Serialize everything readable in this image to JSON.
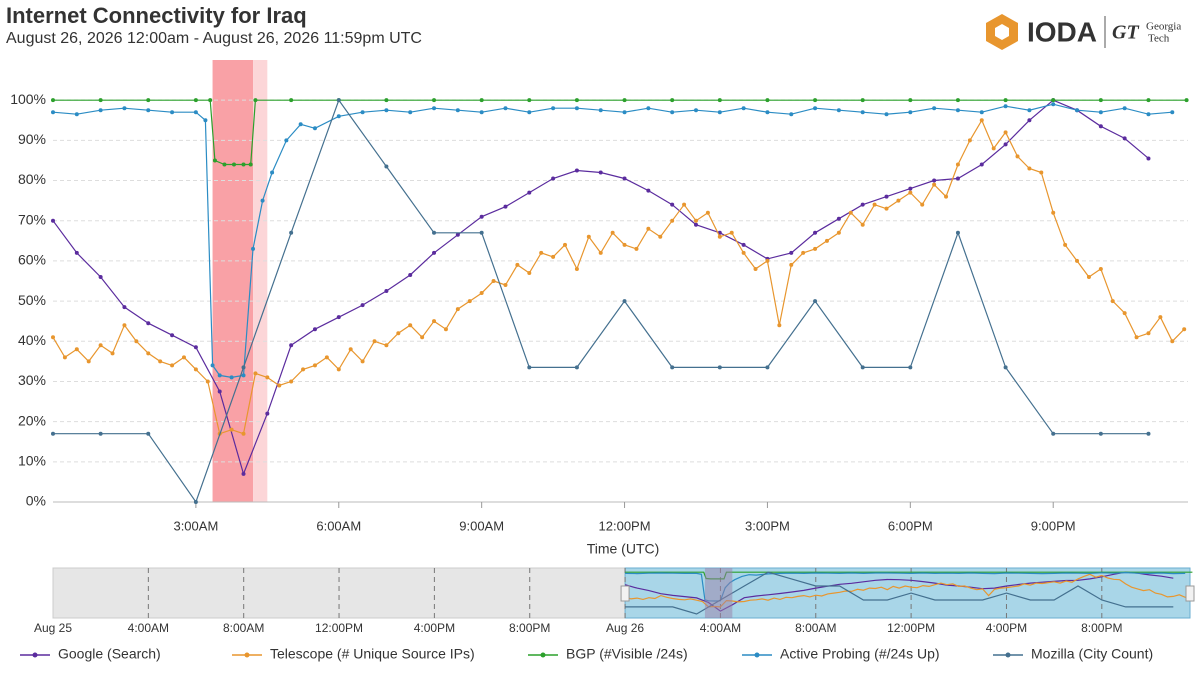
{
  "chart_data": {
    "type": "line",
    "title": "Internet Connectivity for Iraq",
    "subtitle": "August 26, 2026 12:00am - August 26, 2026 11:59pm UTC",
    "logo_text": "IODA",
    "partner_mark": "GT",
    "partner_lines": [
      "Georgia",
      "Tech"
    ],
    "x_label": "Time (UTC)",
    "xlim": [
      0,
      23.83
    ],
    "xticks": [
      {
        "value": 3,
        "label": "3:00AM"
      },
      {
        "value": 6,
        "label": "6:00AM"
      },
      {
        "value": 9,
        "label": "9:00AM"
      },
      {
        "value": 12,
        "label": "12:00PM"
      },
      {
        "value": 15,
        "label": "3:00PM"
      },
      {
        "value": 18,
        "label": "6:00PM"
      },
      {
        "value": 21,
        "label": "9:00PM"
      }
    ],
    "ylim": [
      0,
      110
    ],
    "yticks": [
      {
        "value": 0,
        "label": "0%"
      },
      {
        "value": 10,
        "label": "10%"
      },
      {
        "value": 20,
        "label": "20%"
      },
      {
        "value": 30,
        "label": "30%"
      },
      {
        "value": 40,
        "label": "40%"
      },
      {
        "value": 50,
        "label": "50%"
      },
      {
        "value": 60,
        "label": "60%"
      },
      {
        "value": 70,
        "label": "70%"
      },
      {
        "value": 80,
        "label": "80%"
      },
      {
        "value": 90,
        "label": "90%"
      },
      {
        "value": 100,
        "label": "100%"
      }
    ],
    "grid": true,
    "highlights": [
      {
        "x": [
          3.35,
          4.2
        ],
        "color": "#f9a1a6"
      },
      {
        "x": [
          4.2,
          4.5
        ],
        "color": "#fcd6d8"
      }
    ],
    "series": [
      {
        "name": "Google (Search)",
        "color": "#5b2c9e",
        "x": [
          0,
          0.5,
          1,
          1.5,
          2,
          2.5,
          3,
          3.5,
          4,
          4.5,
          5,
          5.5,
          6,
          6.5,
          7,
          7.5,
          8,
          8.5,
          9,
          9.5,
          10,
          10.5,
          11,
          11.5,
          12,
          12.5,
          13,
          13.5,
          14,
          14.5,
          15,
          15.5,
          16,
          16.5,
          17,
          17.5,
          18,
          18.5,
          19,
          19.5,
          20,
          20.5,
          21,
          21.5,
          22,
          22.5,
          23
        ],
        "values": [
          70,
          62,
          56,
          48.5,
          44.5,
          41.5,
          38.5,
          27.5,
          7,
          22,
          39,
          43,
          46,
          49,
          52.5,
          56.5,
          62,
          66.5,
          71,
          73.5,
          77,
          80.5,
          82.5,
          82,
          80.5,
          77.5,
          74,
          69,
          67,
          64,
          60.5,
          62,
          67,
          70.5,
          74,
          76,
          78,
          80,
          80.5,
          84,
          89,
          95,
          100,
          97.5,
          93.5,
          90.5,
          85.5
        ]
      },
      {
        "name": "Telescope (# Unique Source IPs)",
        "color": "#e8962e",
        "x": [
          0,
          0.25,
          0.5,
          0.75,
          1,
          1.25,
          1.5,
          1.75,
          2,
          2.25,
          2.5,
          2.75,
          3,
          3.25,
          3.5,
          3.75,
          4,
          4.25,
          4.5,
          4.75,
          5,
          5.25,
          5.5,
          5.75,
          6,
          6.25,
          6.5,
          6.75,
          7,
          7.25,
          7.5,
          7.75,
          8,
          8.25,
          8.5,
          8.75,
          9,
          9.25,
          9.5,
          9.75,
          10,
          10.25,
          10.5,
          10.75,
          11,
          11.25,
          11.5,
          11.75,
          12,
          12.25,
          12.5,
          12.75,
          13,
          13.25,
          13.5,
          13.75,
          14,
          14.25,
          14.5,
          14.75,
          15,
          15.25,
          15.5,
          15.75,
          16,
          16.25,
          16.5,
          16.75,
          17,
          17.25,
          17.5,
          17.75,
          18,
          18.25,
          18.5,
          18.75,
          19,
          19.25,
          19.5,
          19.75,
          20,
          20.25,
          20.5,
          20.75,
          21,
          21.25,
          21.5,
          21.75,
          22,
          22.25,
          22.5,
          22.75,
          23,
          23.25,
          23.5,
          23.75
        ],
        "values": [
          41,
          36,
          38,
          35,
          39,
          37,
          44,
          40,
          37,
          35,
          34,
          36,
          33,
          30,
          17,
          18,
          17,
          32,
          31,
          29,
          30,
          33,
          34,
          36,
          33,
          38,
          35,
          40,
          39,
          42,
          44,
          41,
          45,
          43,
          48,
          50,
          52,
          55,
          54,
          59,
          57,
          62,
          61,
          64,
          58,
          66,
          62,
          67,
          64,
          63,
          68,
          66,
          70,
          74,
          70,
          72,
          66,
          67,
          62,
          58,
          60,
          44,
          59,
          62,
          63,
          65,
          67,
          72,
          69,
          74,
          73,
          75,
          77,
          74,
          79,
          76,
          84,
          90,
          95,
          88,
          92,
          86,
          83,
          82,
          72,
          64,
          60,
          56,
          58,
          50,
          47,
          41,
          42,
          46,
          40,
          43
        ]
      },
      {
        "name": "BGP (#Visible /24s)",
        "color": "#2ca02c",
        "x": [
          0,
          1,
          2,
          3,
          3.3,
          3.4,
          3.6,
          3.8,
          4.0,
          4.15,
          4.25,
          5,
          6,
          7,
          8,
          9,
          10,
          11,
          12,
          13,
          14,
          15,
          16,
          17,
          18,
          19,
          20,
          21,
          22,
          23,
          23.8
        ],
        "values": [
          100,
          100,
          100,
          100,
          100,
          85,
          84,
          84,
          84,
          84,
          100,
          100,
          100,
          100,
          100,
          100,
          100,
          100,
          100,
          100,
          100,
          100,
          100,
          100,
          100,
          100,
          100,
          100,
          100,
          100,
          100
        ]
      },
      {
        "name": "Active Probing (#/24s Up)",
        "color": "#2b8cc4",
        "x": [
          0,
          0.5,
          1,
          1.5,
          2,
          2.5,
          3,
          3.2,
          3.35,
          3.5,
          3.75,
          4.0,
          4.2,
          4.4,
          4.6,
          4.9,
          5.2,
          5.5,
          6,
          6.5,
          7,
          7.5,
          8,
          8.5,
          9,
          9.5,
          10,
          10.5,
          11,
          11.5,
          12,
          12.5,
          13,
          13.5,
          14,
          14.5,
          15,
          15.5,
          16,
          16.5,
          17,
          17.5,
          18,
          18.5,
          19,
          19.5,
          20,
          20.5,
          21,
          21.5,
          22,
          22.5,
          23,
          23.5
        ],
        "values": [
          97,
          96.5,
          97.5,
          98,
          97.5,
          97,
          97,
          95,
          34,
          31.5,
          31,
          31.5,
          63,
          75,
          82,
          90,
          94,
          93,
          96,
          97,
          97.5,
          97,
          98,
          97.5,
          97,
          98,
          97,
          98,
          98,
          97.5,
          97,
          98,
          97,
          97.5,
          97,
          98,
          97,
          96.5,
          98,
          97.5,
          97,
          96.5,
          97,
          98,
          97.5,
          97,
          98.5,
          97.5,
          99,
          97.5,
          97,
          98,
          96.5,
          97
        ]
      },
      {
        "name": "Mozilla (City Count)",
        "color": "#44708f",
        "x": [
          0,
          1,
          2,
          3,
          4,
          5,
          6,
          7,
          8,
          9,
          10,
          11,
          12,
          13,
          14,
          15,
          16,
          17,
          18,
          19,
          20,
          21,
          22,
          23
        ],
        "values": [
          17,
          17,
          17,
          0,
          33.5,
          67,
          100,
          83.5,
          67,
          67,
          33.5,
          33.5,
          50,
          33.5,
          33.5,
          33.5,
          50,
          33.5,
          33.5,
          67,
          33.5,
          17,
          17,
          17
        ]
      }
    ],
    "navigator": {
      "xlim": [
        0,
        47.7
      ],
      "selection": [
        24,
        47.7
      ],
      "xticks": [
        {
          "value": 0,
          "label": "Aug 25"
        },
        {
          "value": 4,
          "label": "4:00AM"
        },
        {
          "value": 8,
          "label": "8:00AM"
        },
        {
          "value": 12,
          "label": "12:00PM"
        },
        {
          "value": 16,
          "label": "4:00PM"
        },
        {
          "value": 20,
          "label": "8:00PM"
        },
        {
          "value": 24,
          "label": "Aug 26"
        },
        {
          "value": 28,
          "label": "4:00AM"
        },
        {
          "value": 32,
          "label": "8:00AM"
        },
        {
          "value": 36,
          "label": "12:00PM"
        },
        {
          "value": 40,
          "label": "4:00PM"
        },
        {
          "value": 44,
          "label": "8:00PM"
        }
      ]
    }
  }
}
